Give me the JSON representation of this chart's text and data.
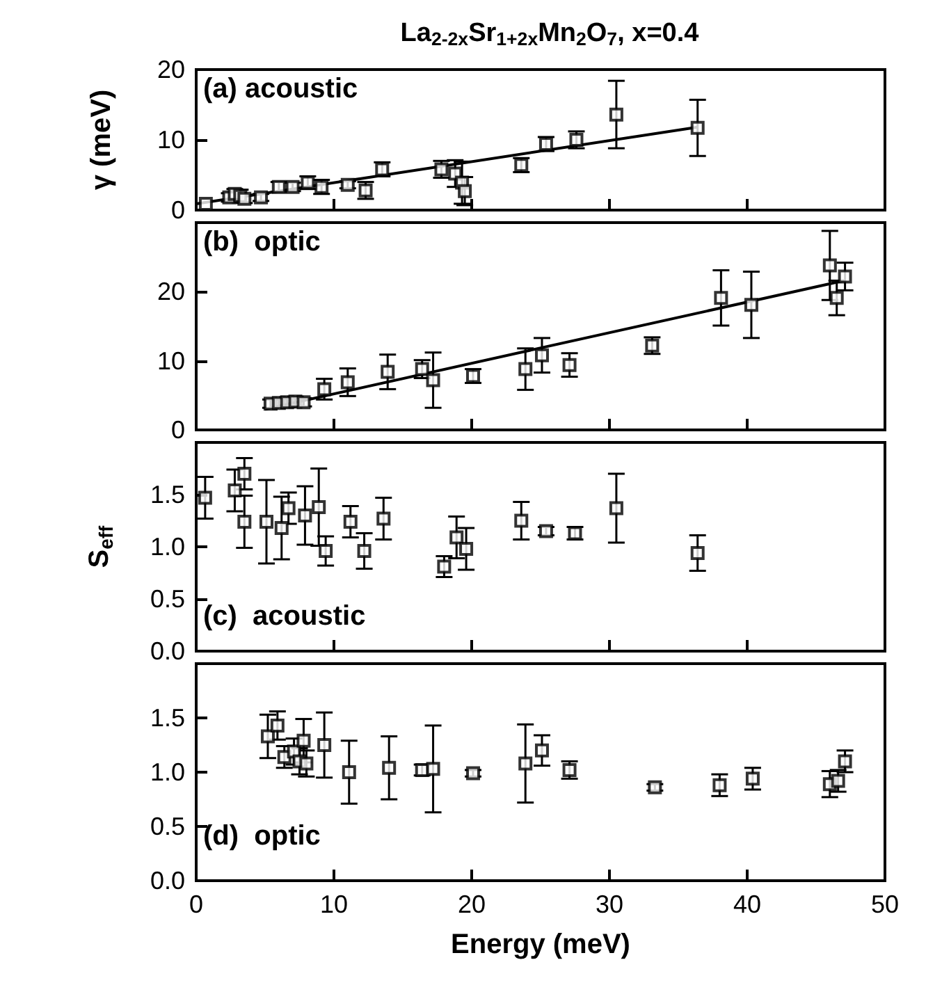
{
  "chart_data": [
    {
      "type": "scatter",
      "title": "La$_{2-2x}$Sr$_{1+2x}$Mn$_{2}$O$_{7}$, x=0.4",
      "ylabel": "γ (meV)",
      "annotations": [
        "(a) acoustic"
      ],
      "xlim": [
        0,
        50
      ],
      "xticks": [
        0,
        10,
        20,
        30,
        40,
        50
      ],
      "ylim": [
        0,
        20
      ],
      "yticks": [
        0,
        10,
        20
      ],
      "tick_labels": "y",
      "marker": "square",
      "series": [
        {
          "color": "#000000",
          "x": [
            0.7,
            2.4,
            2.8,
            3.2,
            3.5,
            4.7,
            6.0,
            7.0,
            8.1,
            9.1,
            11.0,
            12.3,
            13.5,
            17.8,
            18.8,
            19.3,
            19.5,
            23.6,
            25.4,
            27.6,
            30.5,
            36.4
          ],
          "values": [
            0.9,
            1.8,
            2.3,
            2.0,
            1.6,
            1.8,
            3.3,
            3.3,
            3.9,
            3.3,
            3.6,
            2.8,
            5.8,
            5.8,
            5.2,
            3.9,
            2.7,
            6.4,
            9.4,
            10.0,
            13.6,
            11.7
          ],
          "errors": [
            null,
            0.6,
            0.7,
            0.9,
            0.6,
            0.5,
            0.7,
            0.6,
            0.9,
            1.0,
            0.5,
            1.2,
            1.0,
            1.2,
            1.9,
            3.0,
            2.0,
            1.0,
            1.0,
            1.2,
            4.8,
            4.0
          ]
        },
        {
          "type": "line",
          "color": "#000000",
          "marker": "none",
          "x": [
            0,
            36.4
          ],
          "values": [
            0.9,
            11.8
          ]
        }
      ]
    },
    {
      "type": "scatter",
      "annotations": [
        "(b)  optic"
      ],
      "xlim": [
        0,
        50
      ],
      "xticks": [
        0,
        10,
        20,
        30,
        40,
        50
      ],
      "ylim": [
        0,
        30
      ],
      "yticks": [
        0,
        10,
        20
      ],
      "tick_labels": "y",
      "marker": "square",
      "series": [
        {
          "color": "#000000",
          "x": [
            5.4,
            6.0,
            6.6,
            7.2,
            7.8,
            9.3,
            11.0,
            13.9,
            16.4,
            17.2,
            20.1,
            23.9,
            25.1,
            27.1,
            33.1,
            38.1,
            40.3,
            46.0,
            46.5,
            47.1
          ],
          "values": [
            3.8,
            3.9,
            4.0,
            4.1,
            4.0,
            5.9,
            6.9,
            8.4,
            8.8,
            7.2,
            7.8,
            8.8,
            10.8,
            9.4,
            12.2,
            19.1,
            18.1,
            23.8,
            19.1,
            22.2
          ],
          "errors": [
            0.6,
            0.6,
            0.7,
            0.7,
            0.6,
            1.5,
            2.0,
            2.5,
            1.3,
            4.0,
            1.0,
            3.0,
            2.5,
            1.7,
            1.2,
            4.0,
            4.8,
            5.0,
            2.5,
            2.0
          ]
        },
        {
          "type": "line",
          "color": "#000000",
          "marker": "none",
          "x": [
            5,
            47
          ],
          "values": [
            3.0,
            21.6
          ]
        }
      ]
    },
    {
      "type": "scatter",
      "ylabel": "S$_{eff}$",
      "annotations": [
        "(c)  acoustic"
      ],
      "xlim": [
        0,
        50
      ],
      "xticks": [
        0,
        10,
        20,
        30,
        40,
        50
      ],
      "ylim": [
        0,
        2
      ],
      "yticks": [
        {
          "value": 0,
          "label": "0.0"
        },
        {
          "value": 0.5,
          "label": "0.5"
        },
        {
          "value": 1,
          "label": "1.0"
        },
        {
          "value": 1.5,
          "label": "1.5"
        }
      ],
      "tick_labels": "y",
      "marker": "square",
      "series": [
        {
          "color": "#000000",
          "x": [
            0.65,
            2.8,
            3.5,
            3.5,
            5.1,
            6.2,
            6.7,
            7.9,
            8.9,
            9.4,
            11.2,
            12.2,
            13.6,
            18.0,
            18.9,
            19.6,
            23.6,
            25.4,
            27.5,
            30.5,
            36.4
          ],
          "values": [
            1.47,
            1.54,
            1.7,
            1.24,
            1.24,
            1.18,
            1.37,
            1.3,
            1.38,
            0.96,
            1.24,
            0.96,
            1.27,
            0.81,
            1.09,
            0.98,
            1.25,
            1.15,
            1.13,
            1.37,
            0.94
          ],
          "errors": [
            0.2,
            0.2,
            0.15,
            0.25,
            0.4,
            0.3,
            0.15,
            0.28,
            0.37,
            0.14,
            0.15,
            0.17,
            0.2,
            0.1,
            0.2,
            0.2,
            0.18,
            0.04,
            0.06,
            0.33,
            0.17
          ]
        }
      ]
    },
    {
      "type": "scatter",
      "xlabel": "Energy (meV)",
      "annotations": [
        "(d)  optic"
      ],
      "xlim": [
        0,
        50
      ],
      "xticks": [
        0,
        10,
        20,
        30,
        40,
        50
      ],
      "ylim": [
        0,
        2
      ],
      "yticks": [
        {
          "value": 0,
          "label": "0.0"
        },
        {
          "value": 0.5,
          "label": "0.5"
        },
        {
          "value": 1,
          "label": "1.0"
        },
        {
          "value": 1.5,
          "label": "1.5"
        }
      ],
      "marker": "square",
      "series": [
        {
          "color": "#000000",
          "x": [
            5.2,
            5.9,
            6.4,
            7.1,
            7.5,
            7.8,
            8.0,
            9.3,
            11.1,
            14.0,
            16.4,
            17.2,
            20.1,
            23.9,
            25.1,
            27.1,
            33.3,
            38.0,
            40.4,
            46.0,
            46.6,
            47.1
          ],
          "values": [
            1.33,
            1.43,
            1.14,
            1.19,
            1.1,
            1.29,
            1.08,
            1.25,
            1.0,
            1.04,
            1.02,
            1.03,
            0.99,
            1.08,
            1.2,
            1.02,
            0.86,
            0.88,
            0.94,
            0.89,
            0.92,
            1.1
          ],
          "errors": [
            0.2,
            0.13,
            0.1,
            0.12,
            0.12,
            0.2,
            0.12,
            0.3,
            0.29,
            0.29,
            0.05,
            0.4,
            0.03,
            0.36,
            0.14,
            0.08,
            0.03,
            0.1,
            0.1,
            0.12,
            0.1,
            0.1
          ]
        }
      ]
    }
  ]
}
